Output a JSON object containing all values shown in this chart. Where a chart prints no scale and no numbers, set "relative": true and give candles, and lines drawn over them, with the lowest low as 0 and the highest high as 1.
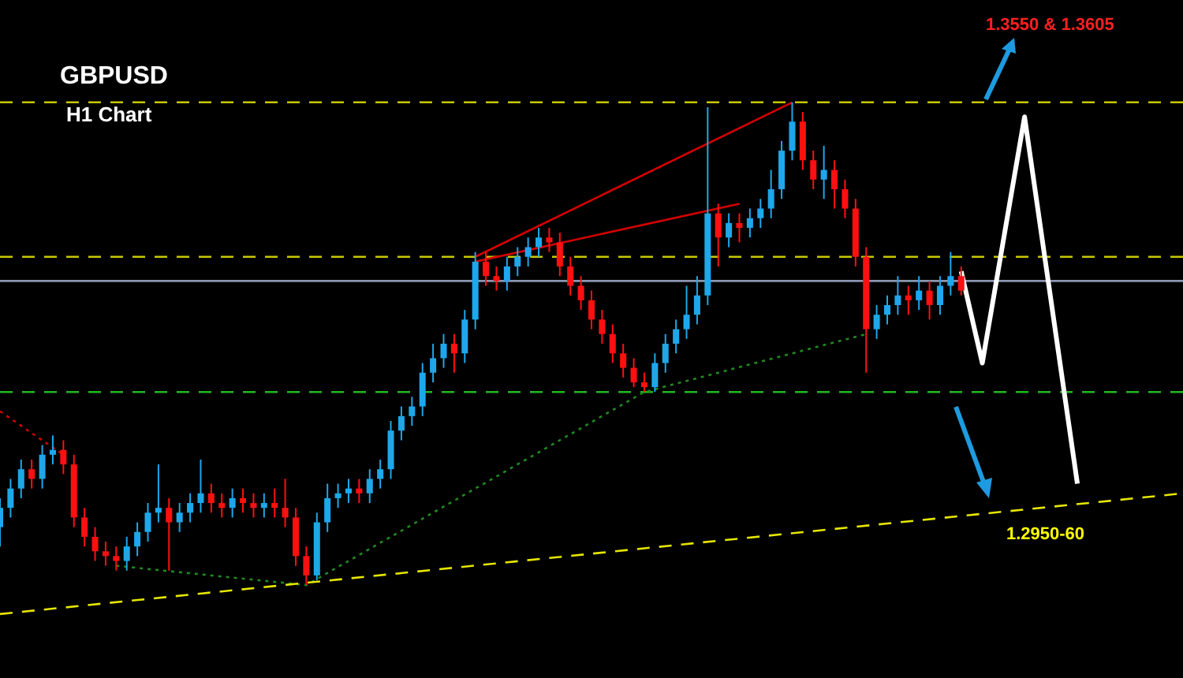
{
  "chart_data": {
    "type": "candlestick",
    "title": "GBPUSD",
    "subtitle": "H1 Chart",
    "relative": true,
    "categories": [
      null,
      null,
      null,
      null,
      null,
      null,
      null,
      null,
      null,
      null,
      null,
      null,
      null,
      null,
      null,
      null,
      null,
      null,
      null,
      null,
      null,
      null,
      null,
      null,
      null,
      null,
      null,
      null,
      null,
      null,
      null,
      null,
      null,
      null,
      null,
      null,
      null,
      null,
      null,
      null,
      null,
      null,
      null,
      null,
      null,
      null,
      null,
      null,
      null,
      null,
      null,
      null,
      null,
      null,
      null,
      null,
      null,
      null,
      null,
      null,
      null,
      null,
      null,
      null,
      null,
      null,
      null,
      null,
      null,
      null,
      null,
      null,
      null,
      null,
      null,
      null,
      null,
      null,
      null,
      null,
      null,
      null,
      null,
      null,
      null,
      null,
      null,
      null,
      null,
      null,
      null,
      null,
      null,
      null,
      null,
      null,
      null,
      null,
      null,
      null,
      null,
      null,
      null,
      null,
      null,
      null,
      null,
      null,
      null,
      null,
      null,
      null,
      null
    ],
    "ohlc": [
      [
        0.12,
        0.18,
        0.08,
        0.16
      ],
      [
        0.16,
        0.22,
        0.14,
        0.2
      ],
      [
        0.2,
        0.26,
        0.18,
        0.24
      ],
      [
        0.24,
        0.26,
        0.2,
        0.22
      ],
      [
        0.22,
        0.29,
        0.2,
        0.27
      ],
      [
        0.27,
        0.31,
        0.25,
        0.28
      ],
      [
        0.28,
        0.3,
        0.23,
        0.25
      ],
      [
        0.25,
        0.27,
        0.12,
        0.14
      ],
      [
        0.14,
        0.16,
        0.08,
        0.1
      ],
      [
        0.1,
        0.12,
        0.05,
        0.07
      ],
      [
        0.07,
        0.09,
        0.04,
        0.06
      ],
      [
        0.06,
        0.08,
        0.03,
        0.05
      ],
      [
        0.05,
        0.1,
        0.03,
        0.08
      ],
      [
        0.08,
        0.13,
        0.06,
        0.11
      ],
      [
        0.11,
        0.17,
        0.09,
        0.15
      ],
      [
        0.15,
        0.25,
        0.13,
        0.16
      ],
      [
        0.16,
        0.18,
        0.03,
        0.13
      ],
      [
        0.13,
        0.17,
        0.11,
        0.15
      ],
      [
        0.15,
        0.19,
        0.13,
        0.17
      ],
      [
        0.17,
        0.26,
        0.15,
        0.19
      ],
      [
        0.19,
        0.21,
        0.15,
        0.17
      ],
      [
        0.17,
        0.19,
        0.14,
        0.16
      ],
      [
        0.16,
        0.2,
        0.14,
        0.18
      ],
      [
        0.18,
        0.2,
        0.15,
        0.17
      ],
      [
        0.17,
        0.19,
        0.14,
        0.16
      ],
      [
        0.16,
        0.19,
        0.14,
        0.17
      ],
      [
        0.17,
        0.2,
        0.14,
        0.16
      ],
      [
        0.16,
        0.22,
        0.12,
        0.14
      ],
      [
        0.14,
        0.16,
        0.04,
        0.06
      ],
      [
        0.06,
        0.08,
        0,
        0.02
      ],
      [
        0.02,
        0.15,
        0.01,
        0.13
      ],
      [
        0.13,
        0.21,
        0.11,
        0.18
      ],
      [
        0.18,
        0.21,
        0.16,
        0.19
      ],
      [
        0.19,
        0.22,
        0.17,
        0.2
      ],
      [
        0.2,
        0.22,
        0.17,
        0.19
      ],
      [
        0.19,
        0.24,
        0.17,
        0.22
      ],
      [
        0.22,
        0.26,
        0.2,
        0.24
      ],
      [
        0.24,
        0.34,
        0.22,
        0.32
      ],
      [
        0.32,
        0.37,
        0.3,
        0.35
      ],
      [
        0.35,
        0.39,
        0.33,
        0.37
      ],
      [
        0.37,
        0.46,
        0.35,
        0.44
      ],
      [
        0.44,
        0.5,
        0.42,
        0.47
      ],
      [
        0.47,
        0.52,
        0.45,
        0.5
      ],
      [
        0.5,
        0.52,
        0.44,
        0.48
      ],
      [
        0.48,
        0.57,
        0.46,
        0.55
      ],
      [
        0.55,
        0.69,
        0.53,
        0.67
      ],
      [
        0.67,
        0.69,
        0.62,
        0.64
      ],
      [
        0.64,
        0.66,
        0.61,
        0.63
      ],
      [
        0.63,
        0.68,
        0.61,
        0.66
      ],
      [
        0.66,
        0.7,
        0.64,
        0.68
      ],
      [
        0.68,
        0.72,
        0.66,
        0.7
      ],
      [
        0.7,
        0.74,
        0.68,
        0.72
      ],
      [
        0.72,
        0.74,
        0.69,
        0.71
      ],
      [
        0.71,
        0.73,
        0.64,
        0.66
      ],
      [
        0.66,
        0.68,
        0.6,
        0.62
      ],
      [
        0.62,
        0.64,
        0.57,
        0.59
      ],
      [
        0.59,
        0.61,
        0.53,
        0.55
      ],
      [
        0.55,
        0.57,
        0.5,
        0.52
      ],
      [
        0.52,
        0.54,
        0.46,
        0.48
      ],
      [
        0.48,
        0.5,
        0.43,
        0.45
      ],
      [
        0.45,
        0.47,
        0.41,
        0.42
      ],
      [
        0.42,
        0.44,
        0.4,
        0.41
      ],
      [
        0.41,
        0.48,
        0.4,
        0.46
      ],
      [
        0.46,
        0.52,
        0.44,
        0.5
      ],
      [
        0.5,
        0.55,
        0.48,
        0.53
      ],
      [
        0.53,
        0.62,
        0.51,
        0.56
      ],
      [
        0.56,
        0.64,
        0.54,
        0.6
      ],
      [
        0.6,
        0.99,
        0.58,
        0.77
      ],
      [
        0.77,
        0.79,
        0.66,
        0.72
      ],
      [
        0.72,
        0.77,
        0.7,
        0.75
      ],
      [
        0.75,
        0.77,
        0.71,
        0.74
      ],
      [
        0.74,
        0.78,
        0.72,
        0.76
      ],
      [
        0.76,
        0.8,
        0.74,
        0.78
      ],
      [
        0.78,
        0.86,
        0.76,
        0.82
      ],
      [
        0.82,
        0.92,
        0.8,
        0.9
      ],
      [
        0.9,
        1,
        0.88,
        0.96
      ],
      [
        0.96,
        0.98,
        0.86,
        0.88
      ],
      [
        0.88,
        0.9,
        0.82,
        0.84
      ],
      [
        0.84,
        0.91,
        0.8,
        0.86
      ],
      [
        0.86,
        0.88,
        0.78,
        0.82
      ],
      [
        0.82,
        0.84,
        0.76,
        0.78
      ],
      [
        0.78,
        0.8,
        0.66,
        0.68
      ],
      [
        0.68,
        0.7,
        0.44,
        0.53
      ],
      [
        0.53,
        0.58,
        0.51,
        0.56
      ],
      [
        0.56,
        0.6,
        0.54,
        0.58
      ],
      [
        0.58,
        0.64,
        0.56,
        0.6
      ],
      [
        0.6,
        0.62,
        0.56,
        0.59
      ],
      [
        0.59,
        0.64,
        0.57,
        0.61
      ],
      [
        0.61,
        0.63,
        0.55,
        0.58
      ],
      [
        0.58,
        0.64,
        0.56,
        0.62
      ],
      [
        0.62,
        0.69,
        0.6,
        0.64
      ],
      [
        0.64,
        0.66,
        0.6,
        0.61
      ],
      null,
      null,
      null,
      null,
      null,
      null,
      null,
      null,
      null,
      null,
      null,
      null,
      null,
      null,
      null,
      null,
      null,
      null,
      null,
      null,
      null
    ],
    "series": [
      {
        "type": "line",
        "color": "#e6e600",
        "line_style": "dashed",
        "values": [
          -0.06,
          null,
          null,
          null,
          null,
          null,
          null,
          null,
          null,
          null,
          null,
          null,
          null,
          null,
          null,
          null,
          null,
          null,
          null,
          null,
          null,
          null,
          null,
          null,
          null,
          null,
          null,
          null,
          null,
          null,
          null,
          null,
          null,
          null,
          null,
          null,
          null,
          null,
          null,
          null,
          null,
          null,
          null,
          null,
          null,
          null,
          null,
          null,
          null,
          null,
          null,
          null,
          null,
          null,
          null,
          null,
          null,
          null,
          null,
          null,
          null,
          null,
          null,
          null,
          null,
          null,
          null,
          null,
          null,
          null,
          null,
          null,
          null,
          null,
          null,
          null,
          null,
          null,
          null,
          null,
          null,
          null,
          null,
          null,
          null,
          null,
          null,
          null,
          null,
          null,
          null,
          null,
          null,
          null,
          null,
          null,
          null,
          null,
          null,
          null,
          null,
          null,
          null,
          null,
          null,
          null,
          null,
          null,
          null,
          null,
          null,
          null,
          0.19
        ]
      },
      {
        "type": "line",
        "color": "#1f8a1f",
        "line_style": "dotted",
        "values": [
          null,
          null,
          null,
          null,
          null,
          null,
          null,
          null,
          null,
          null,
          null,
          0.04,
          null,
          null,
          null,
          null,
          null,
          null,
          null,
          null,
          null,
          null,
          null,
          null,
          null,
          null,
          null,
          null,
          null,
          0,
          null,
          null,
          null,
          null,
          null,
          null,
          null,
          null,
          null,
          null,
          null,
          null,
          null,
          null,
          null,
          null,
          null,
          null,
          null,
          null,
          null,
          null,
          null,
          null,
          null,
          null,
          null,
          null,
          null,
          null,
          null,
          0.4,
          null,
          null,
          null,
          null,
          null,
          null,
          null,
          null,
          null,
          null,
          null,
          null,
          null,
          null,
          null,
          null,
          null,
          null,
          null,
          null,
          0.52,
          null,
          null,
          null,
          null,
          null,
          null,
          null,
          null,
          null,
          null,
          null,
          null,
          null,
          null,
          null,
          null,
          null,
          null,
          null,
          null,
          null,
          null,
          null,
          null,
          null,
          null,
          null,
          null,
          null,
          null
        ]
      },
      {
        "type": "line",
        "color": "#d40000",
        "line_style": "solid",
        "values": [
          null,
          null,
          null,
          null,
          null,
          null,
          null,
          null,
          null,
          null,
          null,
          null,
          null,
          null,
          null,
          null,
          null,
          null,
          null,
          null,
          null,
          null,
          null,
          null,
          null,
          null,
          null,
          null,
          null,
          null,
          null,
          null,
          null,
          null,
          null,
          null,
          null,
          null,
          null,
          null,
          null,
          null,
          null,
          null,
          null,
          0.68,
          null,
          null,
          null,
          null,
          null,
          null,
          null,
          null,
          null,
          null,
          null,
          null,
          null,
          null,
          null,
          null,
          null,
          null,
          null,
          null,
          null,
          null,
          null,
          null,
          null,
          null,
          null,
          null,
          null,
          1,
          null,
          null,
          null,
          null,
          null,
          null,
          null,
          null,
          null,
          null,
          null,
          null,
          null,
          null,
          null,
          null,
          null,
          null,
          null,
          null,
          null,
          null,
          null,
          null,
          null,
          null,
          null,
          null,
          null,
          null,
          null,
          null,
          null,
          null,
          null,
          null,
          null
        ]
      },
      {
        "type": "line",
        "color": "#d40000",
        "line_style": "solid",
        "values": [
          null,
          null,
          null,
          null,
          null,
          null,
          null,
          null,
          null,
          null,
          null,
          null,
          null,
          null,
          null,
          null,
          null,
          null,
          null,
          null,
          null,
          null,
          null,
          null,
          null,
          null,
          null,
          null,
          null,
          null,
          null,
          null,
          null,
          null,
          null,
          null,
          null,
          null,
          null,
          null,
          null,
          null,
          null,
          null,
          null,
          0.67,
          null,
          null,
          null,
          null,
          null,
          null,
          null,
          null,
          null,
          null,
          null,
          null,
          null,
          null,
          null,
          null,
          null,
          null,
          null,
          null,
          null,
          null,
          null,
          null,
          0.79,
          null,
          null,
          null,
          null,
          null,
          null,
          null,
          null,
          null,
          null,
          null,
          null,
          null,
          null,
          null,
          null,
          null,
          null,
          null,
          null,
          null,
          null,
          null,
          null,
          null,
          null,
          null,
          null,
          null,
          null,
          null,
          null,
          null,
          null,
          null,
          null,
          null,
          null,
          null,
          null,
          null,
          null
        ]
      },
      {
        "type": "line",
        "color": "#d40000",
        "line_style": "dotted",
        "values": [
          0.36,
          null,
          null,
          null,
          null,
          null,
          0.27,
          null,
          null,
          null,
          null,
          null,
          null,
          null,
          null,
          null,
          null,
          null,
          null,
          null,
          null,
          null,
          null,
          null,
          null,
          null,
          null,
          null,
          null,
          null,
          null,
          null,
          null,
          null,
          null,
          null,
          null,
          null,
          null,
          null,
          null,
          null,
          null,
          null,
          null,
          null,
          null,
          null,
          null,
          null,
          null,
          null,
          null,
          null,
          null,
          null,
          null,
          null,
          null,
          null,
          null,
          null,
          null,
          null,
          null,
          null,
          null,
          null,
          null,
          null,
          null,
          null,
          null,
          null,
          null,
          null,
          null,
          null,
          null,
          null,
          null,
          null,
          null,
          null,
          null,
          null,
          null,
          null,
          null,
          null,
          null,
          null,
          null,
          null,
          null,
          null,
          null,
          null,
          null,
          null,
          null,
          null,
          null,
          null,
          null,
          null,
          null,
          null,
          null,
          null,
          null,
          null,
          null
        ]
      },
      {
        "type": "line",
        "color": "#ffffff",
        "line_style": "solid",
        "values": [
          null,
          null,
          null,
          null,
          null,
          null,
          null,
          null,
          null,
          null,
          null,
          null,
          null,
          null,
          null,
          null,
          null,
          null,
          null,
          null,
          null,
          null,
          null,
          null,
          null,
          null,
          null,
          null,
          null,
          null,
          null,
          null,
          null,
          null,
          null,
          null,
          null,
          null,
          null,
          null,
          null,
          null,
          null,
          null,
          null,
          null,
          null,
          null,
          null,
          null,
          null,
          null,
          null,
          null,
          null,
          null,
          null,
          null,
          null,
          null,
          null,
          null,
          null,
          null,
          null,
          null,
          null,
          null,
          null,
          null,
          null,
          null,
          null,
          null,
          null,
          null,
          null,
          null,
          null,
          null,
          null,
          null,
          null,
          null,
          null,
          null,
          null,
          null,
          null,
          null,
          null,
          0.65,
          null,
          0.46,
          null,
          null,
          null,
          0.97,
          null,
          null,
          null,
          null,
          0.21,
          null,
          null,
          null,
          null,
          null,
          null,
          null,
          null,
          null,
          null
        ]
      }
    ],
    "ref_lines": [
      {
        "axis": "y",
        "value": 1,
        "color": "#c8c800",
        "line_style": "dashed"
      },
      {
        "axis": "y",
        "value": 0.68,
        "color": "#c8c800",
        "line_style": "dashed"
      },
      {
        "axis": "y",
        "value": 0.4,
        "color": "#22b822",
        "line_style": "dashed"
      },
      {
        "axis": "y",
        "value": 0.63,
        "color": "#8a96b0",
        "line_style": "solid"
      }
    ],
    "annotations": [
      "1.3550 & 1.3605",
      "1.2950-60"
    ]
  }
}
